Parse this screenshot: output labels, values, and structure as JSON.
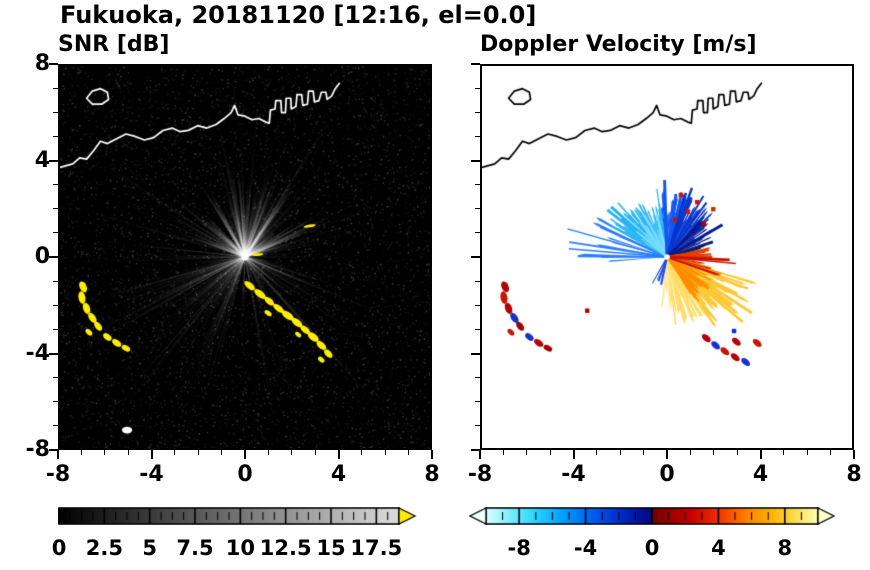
{
  "header": {
    "title": "Fukuoka, 20181120 [12:16, el=0.0]"
  },
  "chart_data": [
    {
      "type": "heatmap",
      "title": "SNR [dB]",
      "xlabel": "",
      "ylabel": "",
      "xlim": [
        -8,
        8
      ],
      "ylim": [
        -8,
        8
      ],
      "xtick_values": [
        -8,
        -4,
        0,
        4,
        8
      ],
      "xtick_labels": [
        "-8",
        "-4",
        "0",
        "4",
        "8"
      ],
      "ytick_values": [
        8,
        4,
        0,
        -4,
        -8
      ],
      "ytick_labels": [
        "8",
        "4",
        "0",
        "-4",
        "-8"
      ],
      "minor_tick_step": 1,
      "grid": false,
      "background": "#000000",
      "colorbar": {
        "range": [
          0,
          18.75
        ],
        "minor": 0.625,
        "major": 2.5,
        "tick_values": [
          0,
          2.5,
          5,
          7.5,
          10,
          12.5,
          15,
          17.5
        ],
        "tick_labels": [
          "0",
          "2.5",
          "5",
          "7.5",
          "10",
          "12.5",
          "15",
          "17.5"
        ],
        "stops": [
          [
            0,
            "#000000"
          ],
          [
            1,
            "#dcdcdc"
          ]
        ],
        "over_arrow_color": "#ffee00"
      },
      "features": {
        "radar_center": [
          0,
          0
        ],
        "coast_color": "#ffffff",
        "clutter_color": "#ffee00",
        "coastline": [
          [
            -8,
            3.75
          ],
          [
            -7.45,
            3.9
          ],
          [
            -7.15,
            4.15
          ],
          [
            -6.85,
            4.1
          ],
          [
            -6.55,
            4.45
          ],
          [
            -6.25,
            4.85
          ],
          [
            -5.95,
            4.75
          ],
          [
            -5.55,
            4.95
          ],
          [
            -5.15,
            5.15
          ],
          [
            -4.75,
            5.05
          ],
          [
            -4.35,
            4.9
          ],
          [
            -3.95,
            5.0
          ],
          [
            -3.55,
            5.3
          ],
          [
            -3.15,
            5.4
          ],
          [
            -2.8,
            5.25
          ],
          [
            -2.45,
            5.3
          ],
          [
            -2.05,
            5.5
          ],
          [
            -1.65,
            5.4
          ],
          [
            -1.25,
            5.55
          ],
          [
            -0.9,
            5.8
          ],
          [
            -0.6,
            6.05
          ],
          [
            -0.45,
            6.35
          ],
          [
            -0.3,
            5.95
          ],
          [
            0.0,
            5.9
          ],
          [
            0.3,
            5.75
          ],
          [
            0.6,
            5.8
          ],
          [
            0.9,
            5.65
          ],
          [
            1.05,
            5.6
          ],
          [
            1.1,
            6.15
          ],
          [
            1.3,
            6.2
          ],
          [
            1.33,
            6.55
          ],
          [
            1.55,
            6.55
          ],
          [
            1.58,
            6.05
          ],
          [
            1.75,
            6.05
          ],
          [
            1.78,
            6.65
          ],
          [
            1.98,
            6.65
          ],
          [
            2.0,
            6.2
          ],
          [
            2.2,
            6.3
          ],
          [
            2.25,
            6.8
          ],
          [
            2.45,
            6.8
          ],
          [
            2.5,
            6.35
          ],
          [
            2.7,
            6.4
          ],
          [
            2.75,
            6.95
          ],
          [
            2.95,
            6.95
          ],
          [
            3.0,
            6.5
          ],
          [
            3.2,
            6.55
          ],
          [
            3.3,
            6.9
          ],
          [
            3.5,
            6.9
          ],
          [
            3.55,
            6.6
          ],
          [
            3.75,
            6.75
          ],
          [
            3.9,
            7.05
          ],
          [
            4.1,
            7.3
          ]
        ],
        "island": [
          [
            -6.85,
            6.65
          ],
          [
            -6.6,
            6.95
          ],
          [
            -6.25,
            7.05
          ],
          [
            -5.95,
            6.9
          ],
          [
            -5.9,
            6.6
          ],
          [
            -6.2,
            6.4
          ],
          [
            -6.6,
            6.4
          ]
        ],
        "left_cluster": [
          [
            -7.0,
            -1.25,
            0.5,
            0.3,
            -65
          ],
          [
            -7.05,
            -1.7,
            0.55,
            0.3,
            -80
          ],
          [
            -6.85,
            -2.15,
            0.5,
            0.3,
            -70
          ],
          [
            -6.6,
            -2.55,
            0.5,
            0.28,
            -55
          ],
          [
            -6.35,
            -2.9,
            0.45,
            0.26,
            -50
          ],
          [
            -6.75,
            -3.15,
            0.35,
            0.22,
            -45
          ],
          [
            -5.95,
            -3.35,
            0.42,
            0.26,
            -40
          ],
          [
            -5.55,
            -3.6,
            0.46,
            0.26,
            -35
          ],
          [
            -5.15,
            -3.82,
            0.4,
            0.24,
            -30
          ]
        ],
        "chain": [
          [
            0.2,
            -1.2,
            0.55,
            0.26,
            -40
          ],
          [
            0.65,
            -1.55,
            0.6,
            0.28,
            -38
          ],
          [
            1.05,
            -1.85,
            0.5,
            0.26,
            -40
          ],
          [
            1.0,
            -2.35,
            0.35,
            0.2,
            -35
          ],
          [
            1.45,
            -2.15,
            0.55,
            0.26,
            -38
          ],
          [
            1.85,
            -2.45,
            0.6,
            0.3,
            -36
          ],
          [
            2.25,
            -2.75,
            0.55,
            0.28,
            -38
          ],
          [
            2.6,
            -3.05,
            0.5,
            0.26,
            -40
          ],
          [
            2.3,
            -3.25,
            0.3,
            0.18,
            -40
          ],
          [
            2.95,
            -3.35,
            0.55,
            0.3,
            -38
          ],
          [
            3.3,
            -3.7,
            0.5,
            0.28,
            -42
          ],
          [
            3.6,
            -4.05,
            0.45,
            0.26,
            -45
          ],
          [
            3.3,
            -4.3,
            0.32,
            0.2,
            -40
          ]
        ],
        "yellow_dash": [
          2.8,
          1.3,
          0.55,
          0.12,
          10
        ],
        "center_dash": [
          0.55,
          0.1,
          0.5,
          0.12,
          5
        ],
        "white_blob": [
          -5.1,
          -7.25,
          0.45,
          0.3,
          0
        ]
      }
    },
    {
      "type": "heatmap",
      "title": "Doppler Velocity [m/s]",
      "xlabel": "",
      "ylabel": "",
      "xlim": [
        -8,
        8
      ],
      "ylim": [
        -8,
        8
      ],
      "xtick_values": [
        -8,
        -4,
        0,
        4,
        8
      ],
      "xtick_labels": [
        "-8",
        "-4",
        "0",
        "4",
        "8"
      ],
      "ytick_values": [
        8,
        4,
        0,
        -4,
        -8
      ],
      "ytick_labels": [
        "8",
        "4",
        "0",
        "-4",
        "-8"
      ],
      "minor_tick_step": 1,
      "grid": false,
      "background": "#ffffff",
      "colorbar": {
        "range": [
          -10,
          10
        ],
        "minor": 1,
        "major": 4,
        "tick_values": [
          -8,
          -4,
          0,
          4,
          8
        ],
        "tick_labels": [
          "-8",
          "-4",
          "0",
          "4",
          "8"
        ],
        "stops": [
          [
            0,
            "#dcffff"
          ],
          [
            0.07,
            "#7deeff"
          ],
          [
            0.15,
            "#2cd2ff"
          ],
          [
            0.23,
            "#00a0ff"
          ],
          [
            0.31,
            "#0064f0"
          ],
          [
            0.39,
            "#0032d2"
          ],
          [
            0.47,
            "#000f96"
          ],
          [
            0.499,
            "#000a78"
          ],
          [
            0.501,
            "#6e0000"
          ],
          [
            0.55,
            "#960000"
          ],
          [
            0.62,
            "#c80000"
          ],
          [
            0.7,
            "#f03200"
          ],
          [
            0.78,
            "#ff7d00"
          ],
          [
            0.86,
            "#ffb400"
          ],
          [
            0.93,
            "#ffdc50"
          ],
          [
            1,
            "#ffffb4"
          ]
        ],
        "under_arrow_color": "#f0ffff",
        "over_arrow_color": "#ffffc8"
      },
      "features": {
        "coast_color": "#000000",
        "sectors": [
          {
            "a0": 150,
            "a1": 186,
            "r": 3.3,
            "color": "#2b7fff",
            "density": 0.3
          },
          {
            "a0": 96,
            "a1": 152,
            "r": 2.35,
            "color": "#25b4f5",
            "density": 1
          },
          {
            "a0": 100,
            "a1": 148,
            "r": 1.5,
            "color": "#7adcff",
            "density": 0.55
          },
          {
            "a0": 74,
            "a1": 96,
            "r": 2.7,
            "color": "#1156ee",
            "density": 1
          },
          {
            "a0": 42,
            "a1": 74,
            "r": 2.45,
            "color": "#0535cf",
            "density": 1
          },
          {
            "a0": 22,
            "a1": 48,
            "r": 2.05,
            "color": "#021a94",
            "density": 0.9
          },
          {
            "a0": 8,
            "a1": 24,
            "r": 1.5,
            "color": "#0a1f66",
            "density": 0.55
          },
          {
            "a0": -56,
            "a1": -16,
            "r": 3.5,
            "color": "#ffc832",
            "density": 0.85
          },
          {
            "a0": -86,
            "a1": -56,
            "r": 2.65,
            "color": "#ffdc64",
            "density": 0.85
          },
          {
            "a0": -96,
            "a1": -84,
            "r": 1.9,
            "color": "#ffe896",
            "density": 0.5
          },
          {
            "a0": -58,
            "a1": -10,
            "r": 2.0,
            "color": "#ff8c00",
            "density": 0.8
          },
          {
            "a0": -12,
            "a1": 14,
            "r": 1.75,
            "color": "#e83c00",
            "density": 0.9
          },
          {
            "a0": -20,
            "a1": -2,
            "r": 2.3,
            "color": "#c81400",
            "density": 0.45
          },
          {
            "a0": -120,
            "a1": -100,
            "r": 0.95,
            "color": "#1e50e6",
            "density": 0.5
          }
        ],
        "cluster_colors": [
          "#b40000",
          "#c81400",
          "#b40000",
          "#1433cc",
          "#a00000",
          "#c81400",
          "#1433cc",
          "#b40000",
          "#a00000"
        ],
        "tail": [
          [
            1.7,
            -3.4,
            "#b40000"
          ],
          [
            2.1,
            -3.7,
            "#1433cc"
          ],
          [
            2.5,
            -3.95,
            "#c81400"
          ],
          [
            2.95,
            -4.2,
            "#b40000"
          ],
          [
            3.4,
            -4.4,
            "#1433cc"
          ],
          [
            3.0,
            -3.55,
            "#b40000"
          ],
          [
            3.9,
            -3.6,
            "#c81400"
          ]
        ],
        "specks": [
          [
            0.9,
            1.9,
            "#d41400"
          ],
          [
            1.3,
            2.3,
            "#d41400"
          ],
          [
            0.6,
            2.6,
            "#c81400"
          ],
          [
            1.6,
            1.4,
            "#b40000"
          ],
          [
            2.0,
            2.0,
            "#d42800"
          ],
          [
            0.35,
            1.55,
            "#c81400"
          ],
          [
            -3.45,
            -2.25,
            "#b40000"
          ],
          [
            2.9,
            -3.1,
            "#0535cf"
          ]
        ]
      }
    }
  ]
}
